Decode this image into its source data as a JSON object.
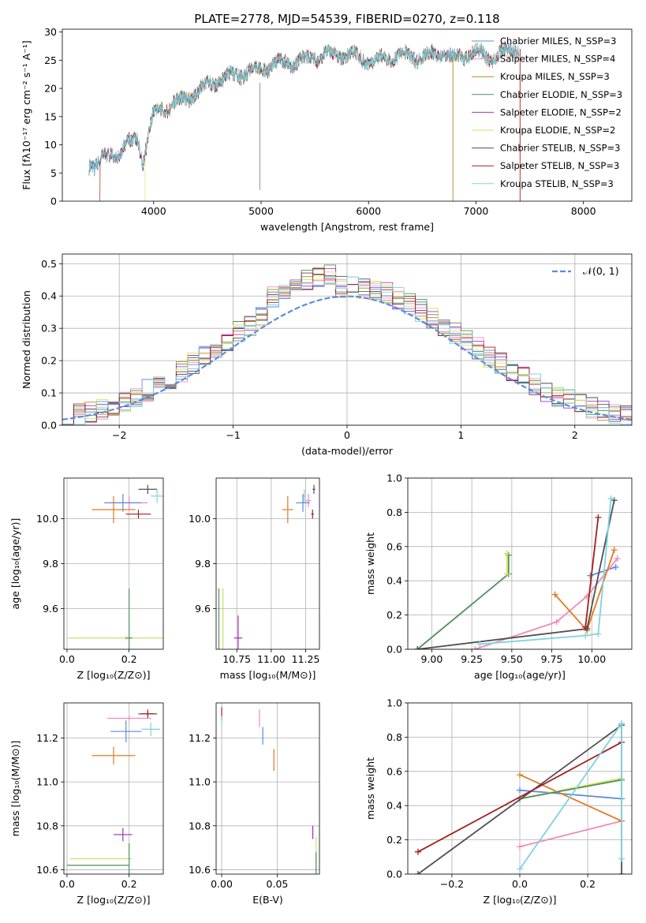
{
  "figure": {
    "title": "PLATE=2778, MJD=54539, FIBERID=0270, z=0.118"
  },
  "colors": {
    "c1": "#5b8ddb",
    "c2": "#f08bb8",
    "c3": "#b5862a",
    "c4": "#4f8f5f",
    "c5": "#a23bc4",
    "c6": "#d8e05a",
    "c7": "#505050",
    "c8": "#a71d1d",
    "c9": "#7dd3e0",
    "orange": "#e07b20",
    "lime": "#c7e06a",
    "purple": "#9b30b0",
    "green": "#4f8f5f"
  },
  "chart_data": [
    {
      "id": "spectrum",
      "type": "line",
      "xlabel": "wavelength [Angstrom, rest frame]",
      "ylabel": "Flux [fλ10⁻¹⁷ erg cm⁻² s⁻¹ A⁻¹]",
      "xlim": [
        3150,
        8450
      ],
      "ylim": [
        0,
        30.5
      ],
      "xticks": [
        4000,
        5000,
        6000,
        7000,
        8000
      ],
      "yticks": [
        0,
        5,
        10,
        15,
        20,
        25,
        30
      ],
      "grid": false,
      "legend_position": "top-right",
      "spectrum_anchor": {
        "x": [
          3400,
          3450,
          3550,
          3650,
          3750,
          3850,
          3900,
          3950,
          4000,
          4100,
          4200,
          4300,
          4400,
          4500,
          4600,
          4700,
          4800,
          4900,
          5000,
          5100,
          5200,
          5300,
          5400,
          5500,
          5600,
          5700,
          5800,
          5900,
          6000,
          6100,
          6200,
          6300,
          6400,
          6500,
          6600,
          6700,
          6800,
          6900,
          7000,
          7100,
          7200,
          7300,
          7400
        ],
        "y": [
          6.5,
          6.5,
          7.5,
          8.5,
          10,
          11,
          7,
          12,
          15.5,
          16.5,
          17.5,
          18,
          19.5,
          20.5,
          21.5,
          22,
          22.5,
          23,
          23.5,
          24,
          24.5,
          24.5,
          25,
          25.5,
          26,
          26,
          26,
          25.5,
          25,
          25,
          25.5,
          26,
          25.5,
          25.5,
          26,
          26.5,
          25,
          26,
          26.5,
          25.5,
          26,
          26.5,
          27
        ]
      },
      "series": [
        {
          "name": "Chabrier MILES, N_SSP=3",
          "color_key": "c1"
        },
        {
          "name": "Salpeter MILES, N_SSP=4",
          "color_key": "c2"
        },
        {
          "name": "Kroupa MILES, N_SSP=3",
          "color_key": "c3"
        },
        {
          "name": "Chabrier ELODIE, N_SSP=3",
          "color_key": "c4"
        },
        {
          "name": "Salpeter ELODIE, N_SSP=2",
          "color_key": "c5"
        },
        {
          "name": "Kroupa ELODIE, N_SSP=2",
          "color_key": "c6"
        },
        {
          "name": "Chabrier STELIB, N_SSP=3",
          "color_key": "c7"
        },
        {
          "name": "Salpeter STELIB, N_SSP=3",
          "color_key": "c8"
        },
        {
          "name": "Kroupa STELIB, N_SSP=3",
          "color_key": "c9"
        }
      ]
    },
    {
      "id": "residuals",
      "type": "line",
      "xlabel": "(data-model)/error",
      "ylabel": "Normed distribution",
      "xlim": [
        -2.5,
        2.5
      ],
      "ylim": [
        0,
        0.53
      ],
      "xticks": [
        -2,
        -1,
        0,
        1,
        2
      ],
      "yticks": [
        0.0,
        0.1,
        0.2,
        0.3,
        0.4,
        0.5
      ],
      "grid": true,
      "legend_position": "top-right",
      "legend_label": "𝒩(0, 1)",
      "normal_color": "#5b8ddb",
      "histogram_series": [
        "c1",
        "c2",
        "c3",
        "c4",
        "c5",
        "c6",
        "c7",
        "c8",
        "c9"
      ]
    },
    {
      "id": "z_age",
      "type": "scatter",
      "xlabel": "Z [log₁₀(Z/Z⊙)]",
      "ylabel": "age  [log₁₀(age/yr)]",
      "xlim": [
        -0.01,
        0.31
      ],
      "ylim": [
        9.42,
        10.18
      ],
      "xticks": [
        0.0,
        0.2
      ],
      "yticks": [
        9.6,
        9.8,
        10.0
      ],
      "grid": true,
      "points": [
        {
          "x": 0.26,
          "y": 10.13,
          "dx": 0.03,
          "dy": 0.02,
          "color_key": "c7"
        },
        {
          "x": 0.29,
          "y": 10.1,
          "dx": 0.02,
          "dy": 0.03,
          "color_key": "c9"
        },
        {
          "x": 0.2,
          "y": 10.07,
          "dx": 0.06,
          "dy": 0.03,
          "color_key": "c2"
        },
        {
          "x": 0.18,
          "y": 10.07,
          "dx": 0.06,
          "dy": 0.04,
          "color_key": "c1"
        },
        {
          "x": 0.23,
          "y": 10.02,
          "dx": 0.04,
          "dy": 0.02,
          "color_key": "c8"
        },
        {
          "x": 0.15,
          "y": 10.04,
          "dx": 0.07,
          "dy": 0.06,
          "color_key": "orange"
        },
        {
          "x": 0.19,
          "y": 9.47,
          "dx": 0.19,
          "dy": 0.01,
          "color_key": "lime"
        },
        {
          "x": 0.2,
          "y": 9.47,
          "dx": 0.01,
          "dy": 0.22,
          "color_key": "green"
        }
      ]
    },
    {
      "id": "mass_age",
      "type": "scatter",
      "xlabel": "mass [log₁₀(M/M⊙)]",
      "ylabel": "",
      "xlim": [
        10.6,
        11.35
      ],
      "ylim": [
        9.42,
        10.18
      ],
      "xticks": [
        10.75,
        11.0,
        11.25
      ],
      "yticks": [
        9.6,
        9.8,
        10.0
      ],
      "grid": true,
      "points": [
        {
          "x": 11.31,
          "y": 10.13,
          "dx": 0.01,
          "dy": 0.02,
          "color_key": "c7"
        },
        {
          "x": 11.24,
          "y": 10.1,
          "dx": 0.01,
          "dy": 0.03,
          "color_key": "c9"
        },
        {
          "x": 11.27,
          "y": 10.08,
          "dx": 0.02,
          "dy": 0.03,
          "color_key": "c2"
        },
        {
          "x": 11.23,
          "y": 10.07,
          "dx": 0.05,
          "dy": 0.04,
          "color_key": "c1"
        },
        {
          "x": 11.3,
          "y": 10.02,
          "dx": 0.01,
          "dy": 0.02,
          "color_key": "c8"
        },
        {
          "x": 11.12,
          "y": 10.04,
          "dx": 0.04,
          "dy": 0.06,
          "color_key": "orange"
        },
        {
          "x": 10.65,
          "y": 9.47,
          "dx": 0.0,
          "dy": 0.22,
          "color_key": "lime"
        },
        {
          "x": 10.62,
          "y": 9.47,
          "dx": 0.0,
          "dy": 0.22,
          "color_key": "green"
        },
        {
          "x": 10.76,
          "y": 9.47,
          "dx": 0.03,
          "dy": 0.1,
          "color_key": "purple"
        }
      ]
    },
    {
      "id": "age_weight",
      "type": "line",
      "xlabel": "age  [log₁₀(age/yr)]",
      "ylabel": "mass weight",
      "xlim": [
        8.85,
        10.25
      ],
      "ylim": [
        0.0,
        1.0
      ],
      "xticks": [
        9.0,
        9.25,
        9.5,
        9.75,
        10.0
      ],
      "yticks": [
        0.0,
        0.2,
        0.4,
        0.6,
        0.8,
        1.0
      ],
      "grid": true,
      "series": [
        {
          "color_key": "c1",
          "x": [
            9.99,
            10.15
          ],
          "y": [
            0.43,
            0.48
          ]
        },
        {
          "color_key": "c2",
          "x": [
            9.27,
            9.78,
            9.97,
            10.16
          ],
          "y": [
            0.0,
            0.16,
            0.31,
            0.53
          ]
        },
        {
          "color_key": "orange",
          "x": [
            9.77,
            9.97,
            10.14
          ],
          "y": [
            0.32,
            0.11,
            0.58
          ]
        },
        {
          "color_key": "c4",
          "x": [
            8.91,
            9.48,
            9.48
          ],
          "y": [
            0.0,
            0.44,
            0.55
          ]
        },
        {
          "color_key": "c6",
          "x": [
            9.47,
            9.47
          ],
          "y": [
            0.44,
            0.56
          ]
        },
        {
          "color_key": "c7",
          "x": [
            8.91,
            9.97,
            10.14
          ],
          "y": [
            0.0,
            0.12,
            0.87
          ]
        },
        {
          "color_key": "c8",
          "x": [
            9.96,
            10.04
          ],
          "y": [
            0.13,
            0.77
          ]
        },
        {
          "color_key": "c9",
          "x": [
            9.3,
            9.96,
            10.04,
            10.12
          ],
          "y": [
            0.03,
            0.08,
            0.09,
            0.88
          ]
        }
      ]
    },
    {
      "id": "z_mass",
      "type": "scatter",
      "xlabel": "Z [log₁₀(Z/Z⊙)]",
      "ylabel": "mass [log₁₀(M/M⊙)]",
      "xlim": [
        -0.01,
        0.31
      ],
      "ylim": [
        10.58,
        11.36
      ],
      "xticks": [
        0.0,
        0.2
      ],
      "yticks": [
        10.6,
        10.8,
        11.0,
        11.2
      ],
      "grid": true,
      "points": [
        {
          "x": 0.26,
          "y": 11.31,
          "dx": 0.03,
          "dy": 0.01,
          "color_key": "c7"
        },
        {
          "x": 0.26,
          "y": 11.31,
          "dx": 0.02,
          "dy": 0.02,
          "color_key": "c8"
        },
        {
          "x": 0.2,
          "y": 11.29,
          "dx": 0.07,
          "dy": 0.01,
          "color_key": "c2"
        },
        {
          "x": 0.27,
          "y": 11.24,
          "dx": 0.03,
          "dy": 0.03,
          "color_key": "c9"
        },
        {
          "x": 0.19,
          "y": 11.23,
          "dx": 0.05,
          "dy": 0.05,
          "color_key": "c1"
        },
        {
          "x": 0.15,
          "y": 11.12,
          "dx": 0.07,
          "dy": 0.04,
          "color_key": "orange"
        },
        {
          "x": 0.18,
          "y": 10.76,
          "dx": 0.03,
          "dy": 0.03,
          "color_key": "purple"
        },
        {
          "x": 0.11,
          "y": 10.65,
          "dx": 0.1,
          "dy": 0.0,
          "color_key": "lime"
        },
        {
          "x": 0.1,
          "y": 10.62,
          "dx": 0.1,
          "dy": 0.0,
          "color_key": "green"
        },
        {
          "x": 0.2,
          "y": 10.62,
          "dx": 0.0,
          "dy": 0.1,
          "color_key": "green"
        }
      ]
    },
    {
      "id": "ebv_mass",
      "type": "scatter",
      "xlabel": "E(B-V)",
      "ylabel": "",
      "xlim": [
        -0.005,
        0.088
      ],
      "ylim": [
        10.58,
        11.36
      ],
      "xticks": [
        0.0,
        0.05
      ],
      "yticks": [
        10.6,
        10.8,
        11.0,
        11.2
      ],
      "grid": true,
      "points": [
        {
          "x": 0.0,
          "y": 11.31,
          "dx": 0,
          "dy": 0.03,
          "color_key": "c8"
        },
        {
          "x": 0.0,
          "y": 11.28,
          "dx": 0,
          "dy": 0.02,
          "color_key": "c9"
        },
        {
          "x": 0.034,
          "y": 11.29,
          "dx": 0,
          "dy": 0.04,
          "color_key": "c2"
        },
        {
          "x": 0.037,
          "y": 11.21,
          "dx": 0,
          "dy": 0.04,
          "color_key": "c1"
        },
        {
          "x": 0.047,
          "y": 11.1,
          "dx": 0,
          "dy": 0.05,
          "color_key": "orange"
        },
        {
          "x": 0.082,
          "y": 10.77,
          "dx": 0,
          "dy": 0.03,
          "color_key": "purple"
        },
        {
          "x": 0.085,
          "y": 10.67,
          "dx": 0,
          "dy": 0.08,
          "color_key": "lime"
        },
        {
          "x": 0.085,
          "y": 10.63,
          "dx": 0,
          "dy": 0.05,
          "color_key": "green"
        }
      ]
    },
    {
      "id": "z_weight",
      "type": "line",
      "xlabel": "Z [log₁₀(Z/Z⊙)]",
      "ylabel": "mass weight",
      "xlim": [
        -0.33,
        0.33
      ],
      "ylim": [
        0.0,
        1.0
      ],
      "xticks": [
        -0.2,
        0.0,
        0.2
      ],
      "yticks": [
        0.0,
        0.2,
        0.4,
        0.6,
        0.8,
        1.0
      ],
      "grid": true,
      "series": [
        {
          "color_key": "c1",
          "x": [
            0.0,
            0.3
          ],
          "y": [
            0.49,
            0.44
          ]
        },
        {
          "color_key": "c2",
          "x": [
            0.0,
            0.3
          ],
          "y": [
            0.16,
            0.31
          ]
        },
        {
          "color_key": "orange",
          "x": [
            0.0,
            0.3
          ],
          "y": [
            0.58,
            0.31
          ]
        },
        {
          "color_key": "c6",
          "x": [
            0.0,
            0.3
          ],
          "y": [
            0.44,
            0.56
          ]
        },
        {
          "color_key": "c4",
          "x": [
            0.0,
            0.3
          ],
          "y": [
            0.44,
            0.55
          ]
        },
        {
          "color_key": "c7",
          "x": [
            -0.3,
            0.3,
            0.3
          ],
          "y": [
            0.0,
            0.87,
            0.0
          ]
        },
        {
          "color_key": "c8",
          "x": [
            -0.3,
            0.3
          ],
          "y": [
            0.13,
            0.77
          ]
        },
        {
          "color_key": "c9",
          "x": [
            0.0,
            0.3,
            0.3
          ],
          "y": [
            0.03,
            0.88,
            0.09
          ]
        }
      ]
    }
  ]
}
